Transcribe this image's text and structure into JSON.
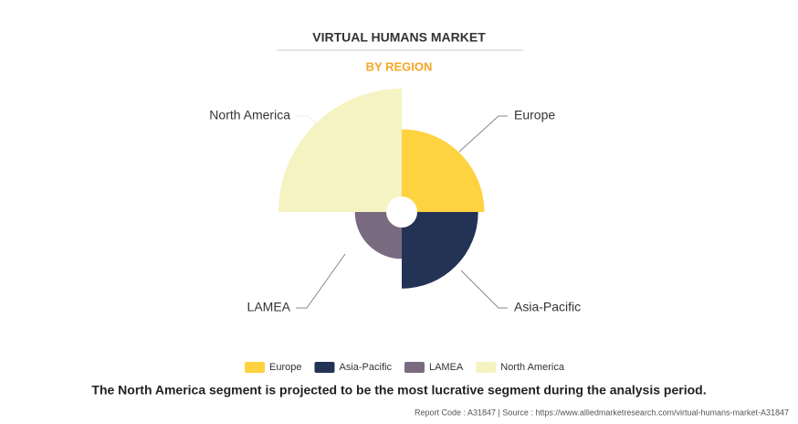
{
  "chart_data": {
    "type": "polar-area",
    "title": "VIRTUAL HUMANS MARKET",
    "subtitle": "BY REGION",
    "categories": [
      "Europe",
      "Asia-Pacific",
      "LAMEA",
      "North America"
    ],
    "values": [
      67,
      62,
      38,
      100
    ],
    "colors": [
      "#ffd23f",
      "#233356",
      "#7a6a80",
      "#f5f3c2"
    ],
    "caption": "The North America segment is projected to be the most lucrative segment during the analysis period.",
    "source": "Report Code : A31847  |  Source : https://www.alliedmarketresearch.com/virtual-humans-market-A31847"
  }
}
